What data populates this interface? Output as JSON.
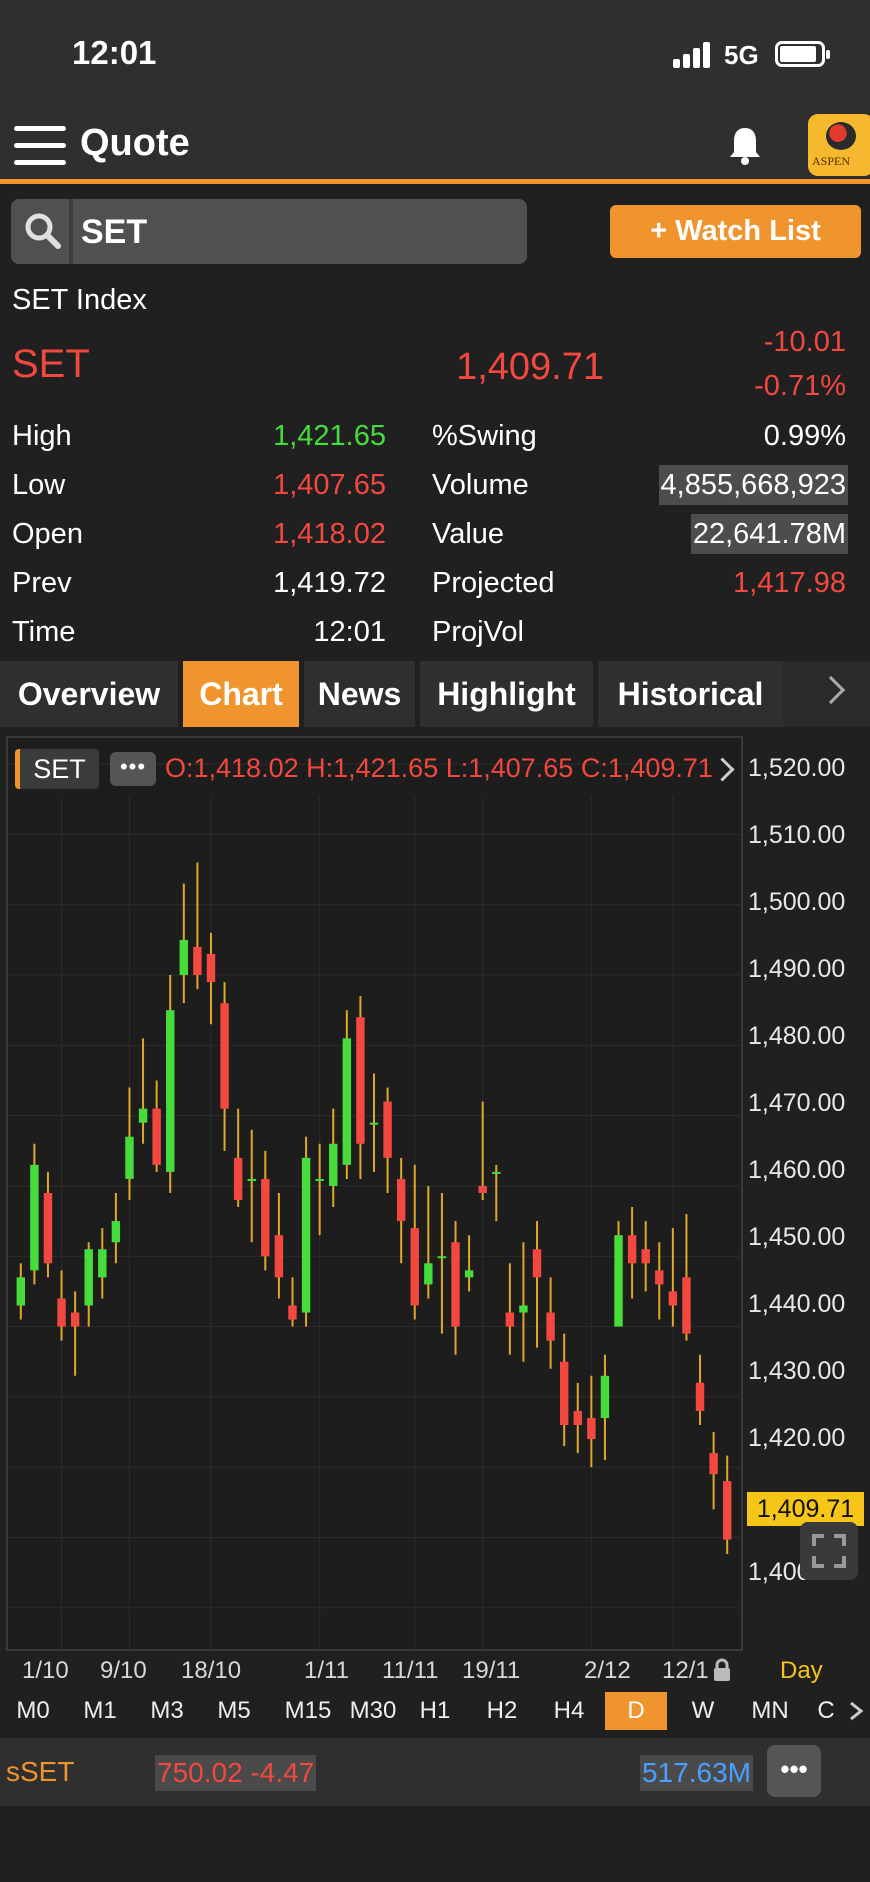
{
  "status_bar": {
    "time": "12:01",
    "network": "5G"
  },
  "header": {
    "title": "Quote",
    "logo_text": "ASPEN"
  },
  "search": {
    "value": "SET"
  },
  "watch_list_label": "+ Watch List",
  "quote": {
    "name": "SET Index",
    "symbol": "SET",
    "last": "1,409.71",
    "change": "-10.01",
    "change_pct": "-0.71%"
  },
  "stats": {
    "high": {
      "label": "High",
      "value": "1,421.65"
    },
    "low": {
      "label": "Low",
      "value": "1,407.65"
    },
    "open": {
      "label": "Open",
      "value": "1,418.02"
    },
    "prev": {
      "label": "Prev",
      "value": "1,419.72"
    },
    "time": {
      "label": "Time",
      "value": "12:01"
    },
    "swing": {
      "label": "%Swing",
      "value": "0.99%"
    },
    "volume": {
      "label": "Volume",
      "value": "4,855,668,923"
    },
    "value": {
      "label": "Value",
      "value": "22,641.78M"
    },
    "projected": {
      "label": "Projected",
      "value": "1,417.98"
    },
    "projvol": {
      "label": "ProjVol",
      "value": ""
    }
  },
  "tabs": [
    "Overview",
    "Chart",
    "News",
    "Highlight",
    "Historical"
  ],
  "chart_header": {
    "symbol": "SET",
    "ohlc": "O:1,418.02  H:1,421.65  L:1,407.65  C:1,409.71"
  },
  "timeframes": [
    "M0",
    "M1",
    "M3",
    "M5",
    "M15",
    "M30",
    "H1",
    "H2",
    "H4",
    "D",
    "W",
    "MN",
    "C"
  ],
  "active_timeframe": "D",
  "period_label": "Day",
  "bottom": {
    "symbol": "sSET",
    "value": "750.02 -4.47",
    "volume": "517.63M"
  },
  "chart_data": {
    "type": "candlestick",
    "colors": {
      "up": "#46dc3c",
      "down": "#f2483f",
      "wick": "#e0a82a"
    },
    "ylim": [
      1394,
      1524
    ],
    "yticks": [
      "1,520.00",
      "1,510.00",
      "1,500.00",
      "1,490.00",
      "1,480.00",
      "1,470.00",
      "1,460.00",
      "1,450.00",
      "1,440.00",
      "1,430.00",
      "1,420.00",
      "1,410.00",
      "1,400.00"
    ],
    "ytick_values": [
      1520,
      1510,
      1500,
      1490,
      1480,
      1470,
      1460,
      1450,
      1440,
      1430,
      1420,
      1410,
      1400
    ],
    "last_price_tag": "1,409.71",
    "xticks": [
      {
        "label": "1/10",
        "index": 3
      },
      {
        "label": "9/10",
        "index": 8
      },
      {
        "label": "18/10",
        "index": 14
      },
      {
        "label": "1/11",
        "index": 22
      },
      {
        "label": "11/11",
        "index": 29
      },
      {
        "label": "19/11",
        "index": 34
      },
      {
        "label": "2/12",
        "index": 42
      },
      {
        "label": "12/1",
        "index": 48
      }
    ],
    "candles": [
      {
        "o": 1443.0,
        "h": 1449.0,
        "l": 1441.0,
        "c": 1447.0
      },
      {
        "o": 1448.0,
        "h": 1466.0,
        "l": 1446.0,
        "c": 1463.0
      },
      {
        "o": 1459.0,
        "h": 1462.0,
        "l": 1447.0,
        "c": 1449.0
      },
      {
        "o": 1444.0,
        "h": 1448.0,
        "l": 1438.0,
        "c": 1440.0
      },
      {
        "o": 1442.0,
        "h": 1445.0,
        "l": 1433.0,
        "c": 1440.0
      },
      {
        "o": 1443.0,
        "h": 1452.0,
        "l": 1440.0,
        "c": 1451.0
      },
      {
        "o": 1447.0,
        "h": 1454.0,
        "l": 1444.0,
        "c": 1451.0
      },
      {
        "o": 1452.0,
        "h": 1459.0,
        "l": 1449.0,
        "c": 1455.0
      },
      {
        "o": 1461.0,
        "h": 1474.0,
        "l": 1458.0,
        "c": 1467.0
      },
      {
        "o": 1469.0,
        "h": 1481.0,
        "l": 1466.0,
        "c": 1471.0
      },
      {
        "o": 1471.0,
        "h": 1475.0,
        "l": 1462.0,
        "c": 1463.0
      },
      {
        "o": 1462.0,
        "h": 1490.0,
        "l": 1459.0,
        "c": 1485.0
      },
      {
        "o": 1490.0,
        "h": 1503.0,
        "l": 1486.0,
        "c": 1495.0
      },
      {
        "o": 1494.0,
        "h": 1506.0,
        "l": 1488.0,
        "c": 1490.0
      },
      {
        "o": 1493.0,
        "h": 1496.0,
        "l": 1483.0,
        "c": 1489.0
      },
      {
        "o": 1486.0,
        "h": 1489.0,
        "l": 1465.0,
        "c": 1471.0
      },
      {
        "o": 1464.0,
        "h": 1471.0,
        "l": 1457.0,
        "c": 1458.0
      },
      {
        "o": 1461.0,
        "h": 1468.0,
        "l": 1452.0,
        "c": 1461.0
      },
      {
        "o": 1461.0,
        "h": 1465.0,
        "l": 1448.0,
        "c": 1450.0
      },
      {
        "o": 1453.0,
        "h": 1459.0,
        "l": 1444.0,
        "c": 1447.0
      },
      {
        "o": 1443.0,
        "h": 1447.0,
        "l": 1440.0,
        "c": 1441.0
      },
      {
        "o": 1442.0,
        "h": 1467.0,
        "l": 1440.0,
        "c": 1464.0
      },
      {
        "o": 1461.0,
        "h": 1466.0,
        "l": 1453.0,
        "c": 1461.0
      },
      {
        "o": 1460.0,
        "h": 1471.0,
        "l": 1457.0,
        "c": 1466.0
      },
      {
        "o": 1463.0,
        "h": 1485.0,
        "l": 1461.0,
        "c": 1481.0
      },
      {
        "o": 1484.0,
        "h": 1487.0,
        "l": 1461.0,
        "c": 1466.0
      },
      {
        "o": 1469.0,
        "h": 1476.0,
        "l": 1462.0,
        "c": 1469.0
      },
      {
        "o": 1472.0,
        "h": 1474.0,
        "l": 1459.0,
        "c": 1464.0
      },
      {
        "o": 1461.0,
        "h": 1464.0,
        "l": 1449.0,
        "c": 1455.0
      },
      {
        "o": 1454.0,
        "h": 1463.0,
        "l": 1441.0,
        "c": 1443.0
      },
      {
        "o": 1446.0,
        "h": 1460.0,
        "l": 1444.0,
        "c": 1449.0
      },
      {
        "o": 1450.0,
        "h": 1459.0,
        "l": 1439.0,
        "c": 1450.0
      },
      {
        "o": 1452.0,
        "h": 1455.0,
        "l": 1436.0,
        "c": 1440.0
      },
      {
        "o": 1447.0,
        "h": 1453.0,
        "l": 1445.0,
        "c": 1448.0
      },
      {
        "o": 1460.0,
        "h": 1472.0,
        "l": 1458.0,
        "c": 1459.0
      },
      {
        "o": 1462.0,
        "h": 1463.0,
        "l": 1455.0,
        "c": 1462.0
      },
      {
        "o": 1442.0,
        "h": 1449.0,
        "l": 1436.0,
        "c": 1440.0
      },
      {
        "o": 1442.0,
        "h": 1452.0,
        "l": 1435.0,
        "c": 1443.0
      },
      {
        "o": 1451.0,
        "h": 1455.0,
        "l": 1437.0,
        "c": 1447.0
      },
      {
        "o": 1442.0,
        "h": 1447.0,
        "l": 1434.0,
        "c": 1438.0
      },
      {
        "o": 1435.0,
        "h": 1439.0,
        "l": 1423.0,
        "c": 1426.0
      },
      {
        "o": 1428.0,
        "h": 1432.0,
        "l": 1422.0,
        "c": 1426.0
      },
      {
        "o": 1427.0,
        "h": 1433.0,
        "l": 1420.0,
        "c": 1424.0
      },
      {
        "o": 1427.0,
        "h": 1436.0,
        "l": 1421.0,
        "c": 1433.0
      },
      {
        "o": 1440.0,
        "h": 1455.0,
        "l": 1440.0,
        "c": 1453.0
      },
      {
        "o": 1453.0,
        "h": 1457.0,
        "l": 1444.0,
        "c": 1449.0
      },
      {
        "o": 1451.0,
        "h": 1455.0,
        "l": 1445.0,
        "c": 1449.0
      },
      {
        "o": 1448.0,
        "h": 1452.0,
        "l": 1441.0,
        "c": 1446.0
      },
      {
        "o": 1445.0,
        "h": 1454.0,
        "l": 1440.0,
        "c": 1443.0
      },
      {
        "o": 1447.0,
        "h": 1456.0,
        "l": 1438.0,
        "c": 1439.0
      },
      {
        "o": 1432.0,
        "h": 1436.0,
        "l": 1426.0,
        "c": 1428.0
      },
      {
        "o": 1422.0,
        "h": 1425.0,
        "l": 1414.0,
        "c": 1419.0
      },
      {
        "o": 1418.02,
        "h": 1421.65,
        "l": 1407.65,
        "c": 1409.71
      }
    ]
  }
}
